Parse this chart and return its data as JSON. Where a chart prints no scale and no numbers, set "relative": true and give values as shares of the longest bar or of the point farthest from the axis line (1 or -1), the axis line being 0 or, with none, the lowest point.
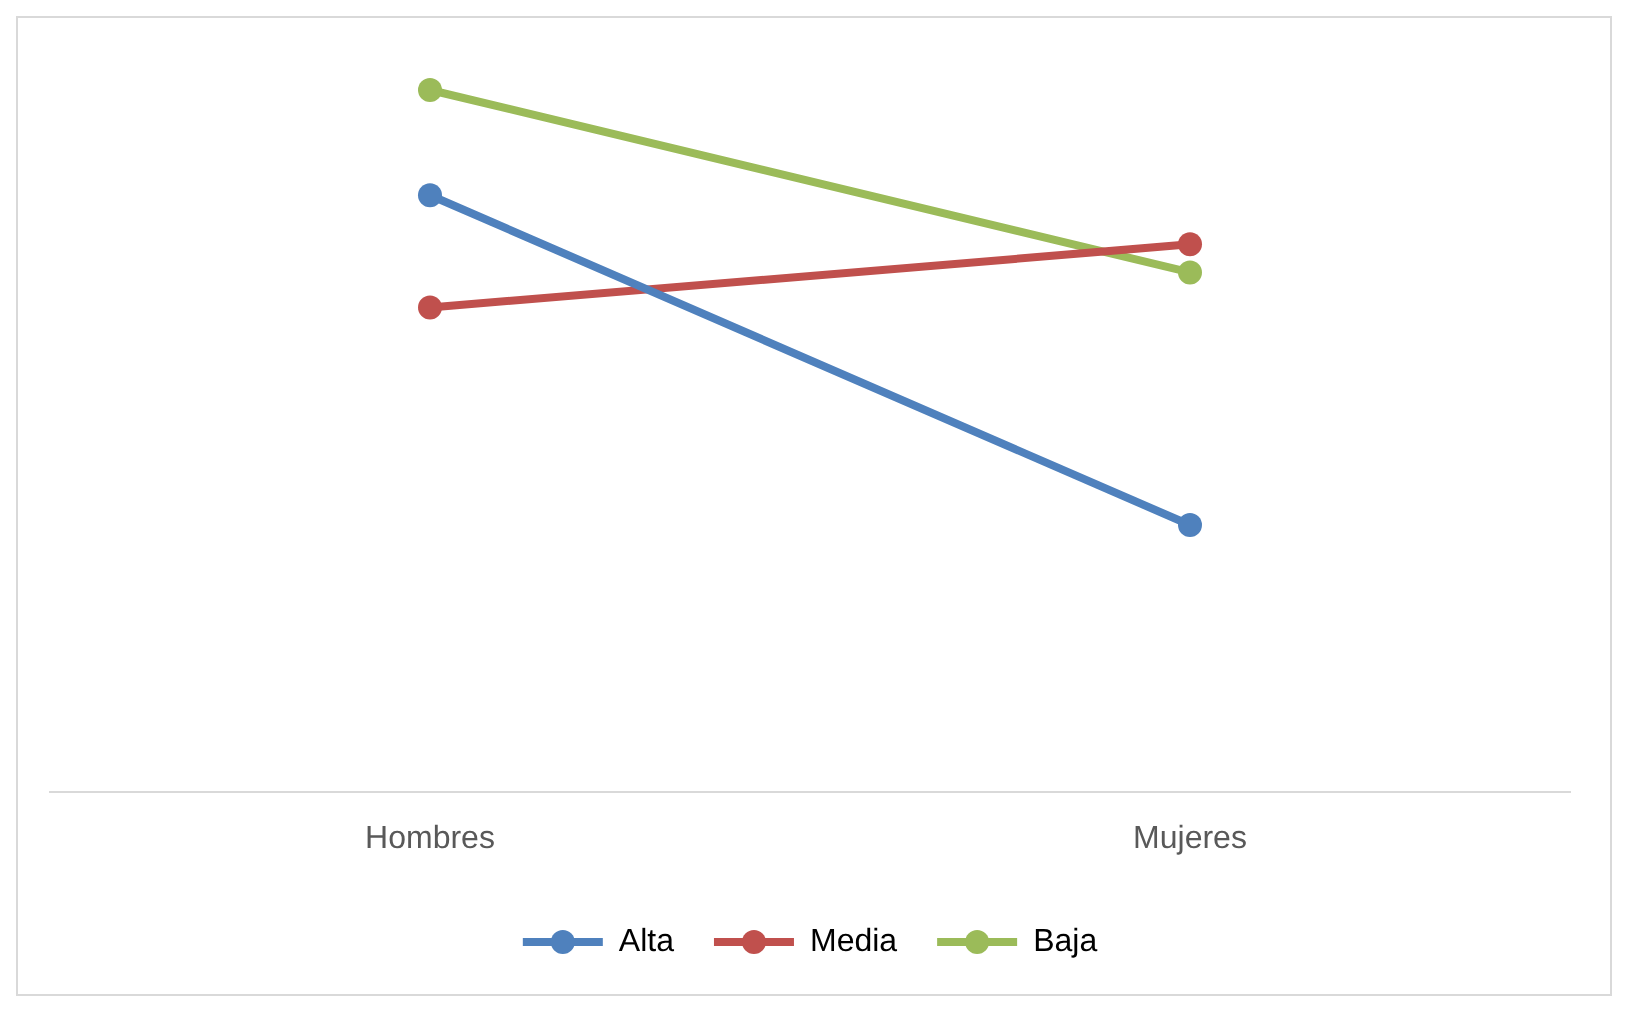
{
  "chart_data": {
    "type": "line",
    "relative": true,
    "categories": [
      "Hombres",
      "Mujeres"
    ],
    "series": [
      {
        "name": "Alta",
        "color": "#4f81bd",
        "values": [
          0.85,
          0.38
        ]
      },
      {
        "name": "Media",
        "color": "#c0504d",
        "values": [
          0.69,
          0.78
        ]
      },
      {
        "name": "Baja",
        "color": "#9bbb59",
        "values": [
          1,
          0.74
        ]
      }
    ],
    "marker": "circle",
    "line_style": "solid",
    "legend": "bottom",
    "grid": false
  }
}
